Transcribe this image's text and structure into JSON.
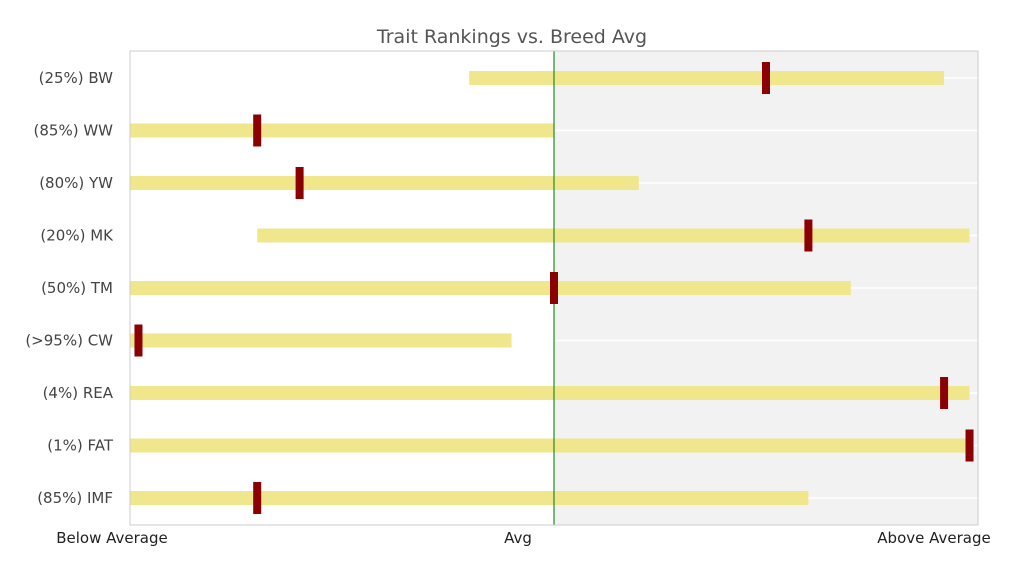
{
  "chart_data": {
    "type": "bar",
    "title": "Trait Rankings vs. Breed Avg",
    "xlabel": "",
    "ylabel": "",
    "x_tick_labels": {
      "below": "Below Average",
      "avg": "Avg",
      "above": "Above Average"
    },
    "xlim": [
      -1,
      1
    ],
    "avg_line_value": 0,
    "grid": true,
    "legend": "none",
    "categories": [
      "(25%) BW",
      "(85%) WW",
      "(80%) YW",
      "(20%) MK",
      "(50%) TM",
      "(>95%) CW",
      "(4%) REA",
      "(1%) FAT",
      "(85%) IMF"
    ],
    "ranges": [
      [
        -0.2,
        0.92
      ],
      [
        -1.0,
        0.0
      ],
      [
        -1.0,
        0.2
      ],
      [
        -0.7,
        0.98
      ],
      [
        -1.0,
        0.7
      ],
      [
        -1.0,
        -0.1
      ],
      [
        -1.0,
        0.98
      ],
      [
        -1.0,
        0.98
      ],
      [
        -1.0,
        0.6
      ]
    ],
    "values": [
      0.5,
      -0.7,
      -0.6,
      0.6,
      0.0,
      -0.98,
      0.92,
      0.98,
      -0.7
    ],
    "colors": {
      "range_bar": "#f0e68c",
      "marker": "#8b0000",
      "avg_line": "#228b22",
      "above_bg": "#f2f2f2",
      "gridline": "#ffffff",
      "frame": "#cccccc"
    }
  }
}
